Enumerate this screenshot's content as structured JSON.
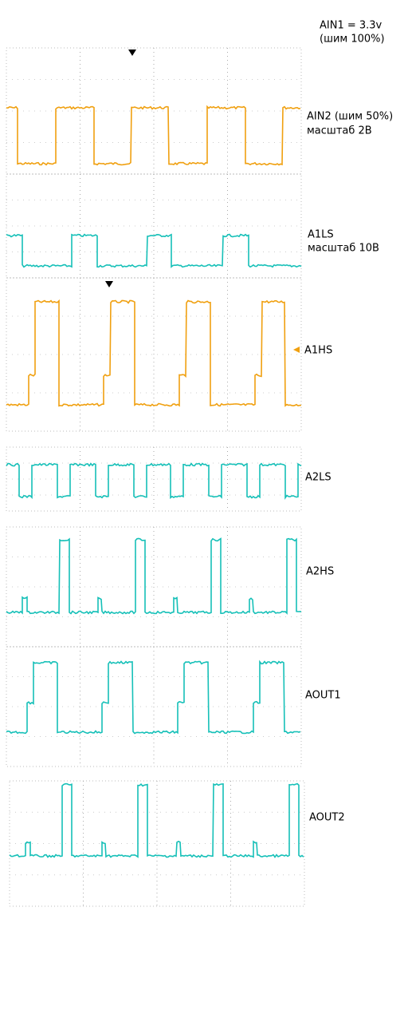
{
  "labels": {
    "ain1": "AIN1 = 3.3v",
    "ain1_pwm": "(шим 100%)",
    "ain2": "AIN2 (шим 50%)",
    "ain2_scale": "масштаб 2В",
    "a1ls": "A1LS",
    "a1ls_scale": "масштаб 10В",
    "a1hs": "A1HS",
    "a2ls": "A2LS",
    "a2hs": "A2HS",
    "aout1": "AOUT1",
    "aout2": "AOUT2"
  }
}
